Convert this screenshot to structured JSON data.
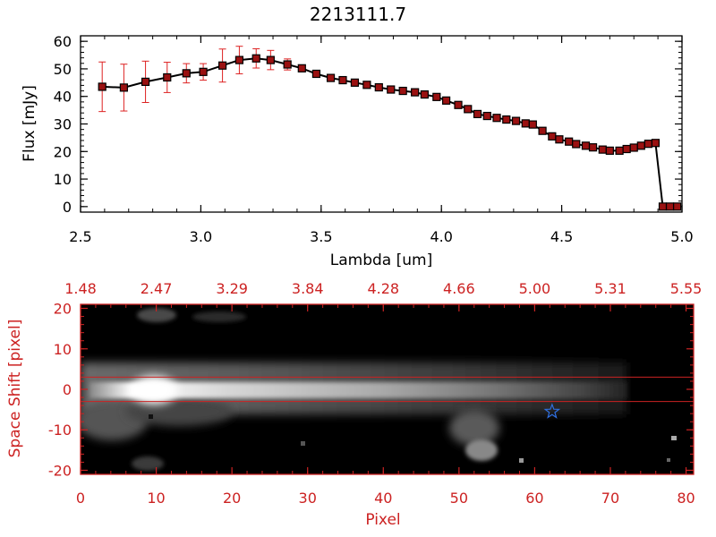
{
  "colors": {
    "axis_top": "#000000",
    "axis_bottom": "#cc2222",
    "marker_fill": "#9a1111",
    "error_bar": "#dd2222",
    "star": "#2f6fe0",
    "image_bg": "#000000"
  },
  "chart_data": [
    {
      "type": "line",
      "title": "2213111.7",
      "xlabel": "Lambda [um]",
      "ylabel": "Flux [mJy]",
      "xlim": [
        2.5,
        5.0
      ],
      "ylim": [
        -2,
        62
      ],
      "x_ticks": [
        2.5,
        3.0,
        3.5,
        4.0,
        4.5,
        5.0
      ],
      "x_tick_labels": [
        "2.5",
        "3.0",
        "3.5",
        "4.0",
        "4.5",
        "5.0"
      ],
      "y_ticks": [
        0,
        10,
        20,
        30,
        40,
        50,
        60
      ],
      "y_tick_labels": [
        "0",
        "10",
        "20",
        "30",
        "40",
        "50",
        "60"
      ],
      "grid": false,
      "series": [
        {
          "marker": "square",
          "x": [
            2.59,
            2.68,
            2.77,
            2.86,
            2.94,
            3.01,
            3.09,
            3.16,
            3.23,
            3.29,
            3.36,
            3.42,
            3.48,
            3.54,
            3.59,
            3.64,
            3.69,
            3.74,
            3.79,
            3.84,
            3.89,
            3.93,
            3.98,
            4.02,
            4.07,
            4.11,
            4.15,
            4.19,
            4.23,
            4.27,
            4.31,
            4.35,
            4.38,
            4.42,
            4.46,
            4.49,
            4.53,
            4.56,
            4.6,
            4.63,
            4.67,
            4.7,
            4.74,
            4.77,
            4.8,
            4.83,
            4.86,
            4.89,
            4.92,
            4.95,
            4.98
          ],
          "y": [
            43.5,
            43.2,
            45.3,
            46.9,
            48.4,
            48.9,
            51.2,
            53.2,
            53.8,
            53.2,
            51.6,
            50.2,
            48.2,
            46.7,
            45.9,
            45.0,
            44.2,
            43.3,
            42.5,
            42.0,
            41.5,
            40.7,
            39.8,
            38.5,
            36.9,
            35.4,
            33.6,
            32.9,
            32.2,
            31.6,
            31.1,
            30.2,
            29.8,
            27.5,
            25.5,
            24.4,
            23.6,
            22.7,
            22.1,
            21.5,
            20.7,
            20.3,
            20.3,
            20.9,
            21.4,
            22.1,
            22.8,
            23.1,
            0.0,
            0.0,
            0.0
          ],
          "error": [
            9.0,
            8.5,
            7.5,
            5.5,
            3.5,
            3.0,
            6.0,
            5.0,
            3.5,
            3.5,
            2.0,
            1.0,
            1.0,
            1.0,
            0.8,
            0.8,
            0.8,
            0.8,
            0.8,
            0.8,
            0.8,
            0.8,
            0.8,
            0.8,
            0.8,
            0.8,
            0.8,
            0.8,
            0.8,
            0.8,
            0.8,
            0.8,
            0.8,
            0.8,
            0.8,
            0.8,
            0.8,
            0.8,
            0.8,
            0.8,
            0.8,
            0.8,
            0.8,
            0.8,
            0.8,
            0.8,
            0.8,
            0.8,
            0.5,
            0.5,
            0.5
          ]
        }
      ]
    },
    {
      "type": "heatmap",
      "xlabel": "Pixel",
      "ylabel": "Space Shift [pixel]",
      "xlim": [
        0,
        81
      ],
      "ylim": [
        -21,
        21
      ],
      "x_ticks": [
        0,
        10,
        20,
        30,
        40,
        50,
        60,
        70,
        80
      ],
      "x_tick_labels": [
        "0",
        "10",
        "20",
        "30",
        "40",
        "50",
        "60",
        "70",
        "80"
      ],
      "y_ticks": [
        -20,
        -10,
        0,
        10,
        20
      ],
      "y_tick_labels": [
        "-20",
        "-10",
        "0",
        "10",
        "20"
      ],
      "top_axis_tick_labels": [
        "1.48",
        "2.47",
        "3.29",
        "3.84",
        "4.28",
        "4.66",
        "5.00",
        "5.31",
        "5.55"
      ],
      "extraction_lines_y": [
        3,
        -3
      ],
      "star_marker": {
        "x": 62.3,
        "y": -5.5
      },
      "colormap": "gray",
      "grid": false
    }
  ]
}
